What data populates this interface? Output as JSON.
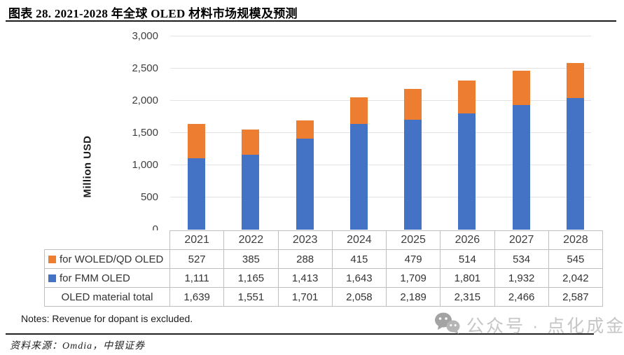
{
  "header": {
    "title": "图表 28. 2021-2028 年全球 OLED 材料市场规模及预测"
  },
  "chart_data": {
    "type": "bar",
    "stacked": true,
    "ylabel": "Million USD",
    "ylim": [
      0,
      3000
    ],
    "yticks": [
      0,
      500,
      1000,
      1500,
      2000,
      2500,
      3000
    ],
    "ytick_labels": [
      "0",
      "500",
      "1,000",
      "1,500",
      "2,000",
      "2,500",
      "3,000"
    ],
    "categories": [
      "2021",
      "2022",
      "2023",
      "2024",
      "2025",
      "2026",
      "2027",
      "2028"
    ],
    "series": [
      {
        "name": "for WOLED/QD OLED",
        "color": "#ED7D31",
        "values": [
          527,
          385,
          288,
          415,
          479,
          514,
          534,
          545
        ]
      },
      {
        "name": "for FMM OLED",
        "color": "#4472C4",
        "values": [
          1111,
          1165,
          1413,
          1643,
          1709,
          1801,
          1932,
          2042
        ]
      }
    ],
    "totals": {
      "label": "OLED material total",
      "values": [
        1639,
        1551,
        1701,
        2058,
        2189,
        2315,
        2466,
        2587
      ]
    },
    "value_labels": {
      "for WOLED/QD OLED": [
        "527",
        "385",
        "288",
        "415",
        "479",
        "514",
        "534",
        "545"
      ],
      "for FMM OLED": [
        "1,111",
        "1,165",
        "1,413",
        "1,643",
        "1,709",
        "1,801",
        "1,932",
        "2,042"
      ],
      "OLED material total": [
        "1,639",
        "1,551",
        "1,701",
        "2,058",
        "2,189",
        "2,315",
        "2,466",
        "2,587"
      ]
    },
    "grid": true,
    "legend_position": "table-below"
  },
  "footer": {
    "notes": "Notes: Revenue for dopant is excluded.",
    "source": "资料来源：Omdia，中银证券"
  },
  "watermark": {
    "icon": "wechat-icon",
    "text": "公众号 · 点化成金"
  },
  "colors": {
    "woled_orange": "#ED7D31",
    "fmm_blue": "#4472C4",
    "gridline": "#e2e2e2",
    "table_border": "#bfbfbf",
    "watermark_gray": "#c6c6c6"
  }
}
